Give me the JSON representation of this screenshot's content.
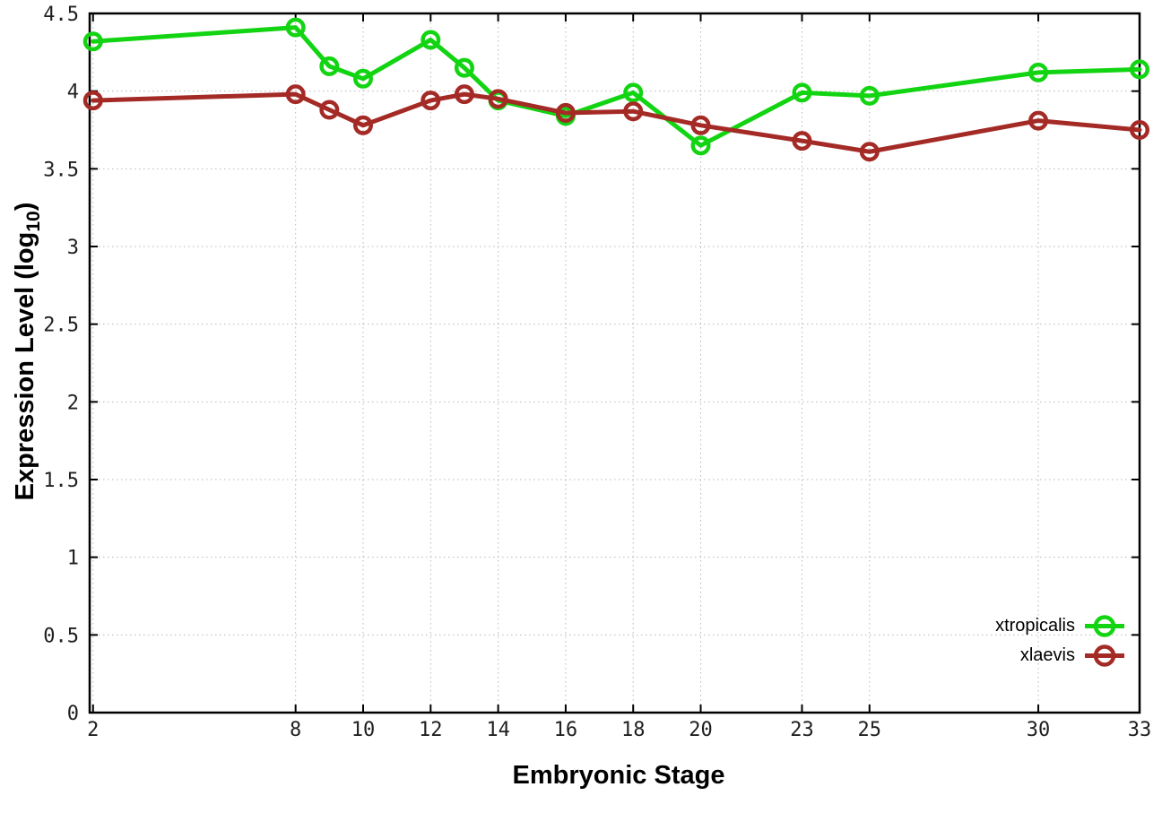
{
  "chart_data": {
    "type": "line",
    "title": "",
    "xlabel": "Embryonic Stage",
    "ylabel": {
      "prefix": "Expression Level (log",
      "sub": "10",
      "suffix": ")"
    },
    "x": [
      2,
      8,
      9,
      10,
      12,
      13,
      14,
      16,
      18,
      20,
      23,
      25,
      30,
      33
    ],
    "series": [
      {
        "name": "xtropicalis",
        "color": "#12d412",
        "values": [
          4.32,
          4.41,
          4.16,
          4.08,
          4.33,
          4.15,
          3.94,
          3.84,
          3.99,
          3.65,
          3.99,
          3.97,
          4.12,
          4.14
        ]
      },
      {
        "name": "xlaevis",
        "color": "#a42a26",
        "values": [
          3.94,
          3.98,
          3.88,
          3.78,
          3.94,
          3.98,
          3.95,
          3.86,
          3.87,
          3.78,
          3.68,
          3.61,
          3.81,
          3.75
        ]
      }
    ],
    "xticks": {
      "values": [
        2,
        8,
        10,
        12,
        14,
        16,
        18,
        20,
        23,
        25,
        30,
        33
      ],
      "labels": [
        "2",
        "8",
        "10",
        "12",
        "14",
        "16",
        "18",
        "20",
        "23",
        "25",
        "30",
        "33"
      ]
    },
    "yticks": {
      "values": [
        0,
        0.5,
        1,
        1.5,
        2,
        2.5,
        3,
        3.5,
        4,
        4.5
      ],
      "labels": [
        "0",
        "0.5",
        "1",
        "1.5",
        "2",
        "2.5",
        "3",
        "3.5",
        "4",
        "4.5"
      ]
    },
    "xlim": [
      1.9,
      33
    ],
    "ylim": [
      0,
      4.5
    ],
    "grid": true,
    "legend_position": "inside-bottom-right",
    "frame_color": "#000000",
    "grid_color": "#b8b8b8",
    "tick_label_color": "#1f1f1f"
  }
}
